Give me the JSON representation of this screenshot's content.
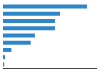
{
  "chart_data": {
    "type": "bar",
    "orientation": "horizontal",
    "categories": [
      null,
      null,
      null,
      null,
      null,
      null,
      null,
      null,
      null
    ],
    "values": [
      100,
      68,
      62,
      62,
      38,
      33,
      10,
      2.5,
      1.5
    ],
    "color": "#2E86C8",
    "xlim": [
      0,
      112
    ],
    "grid": false,
    "tick_labels": false
  }
}
